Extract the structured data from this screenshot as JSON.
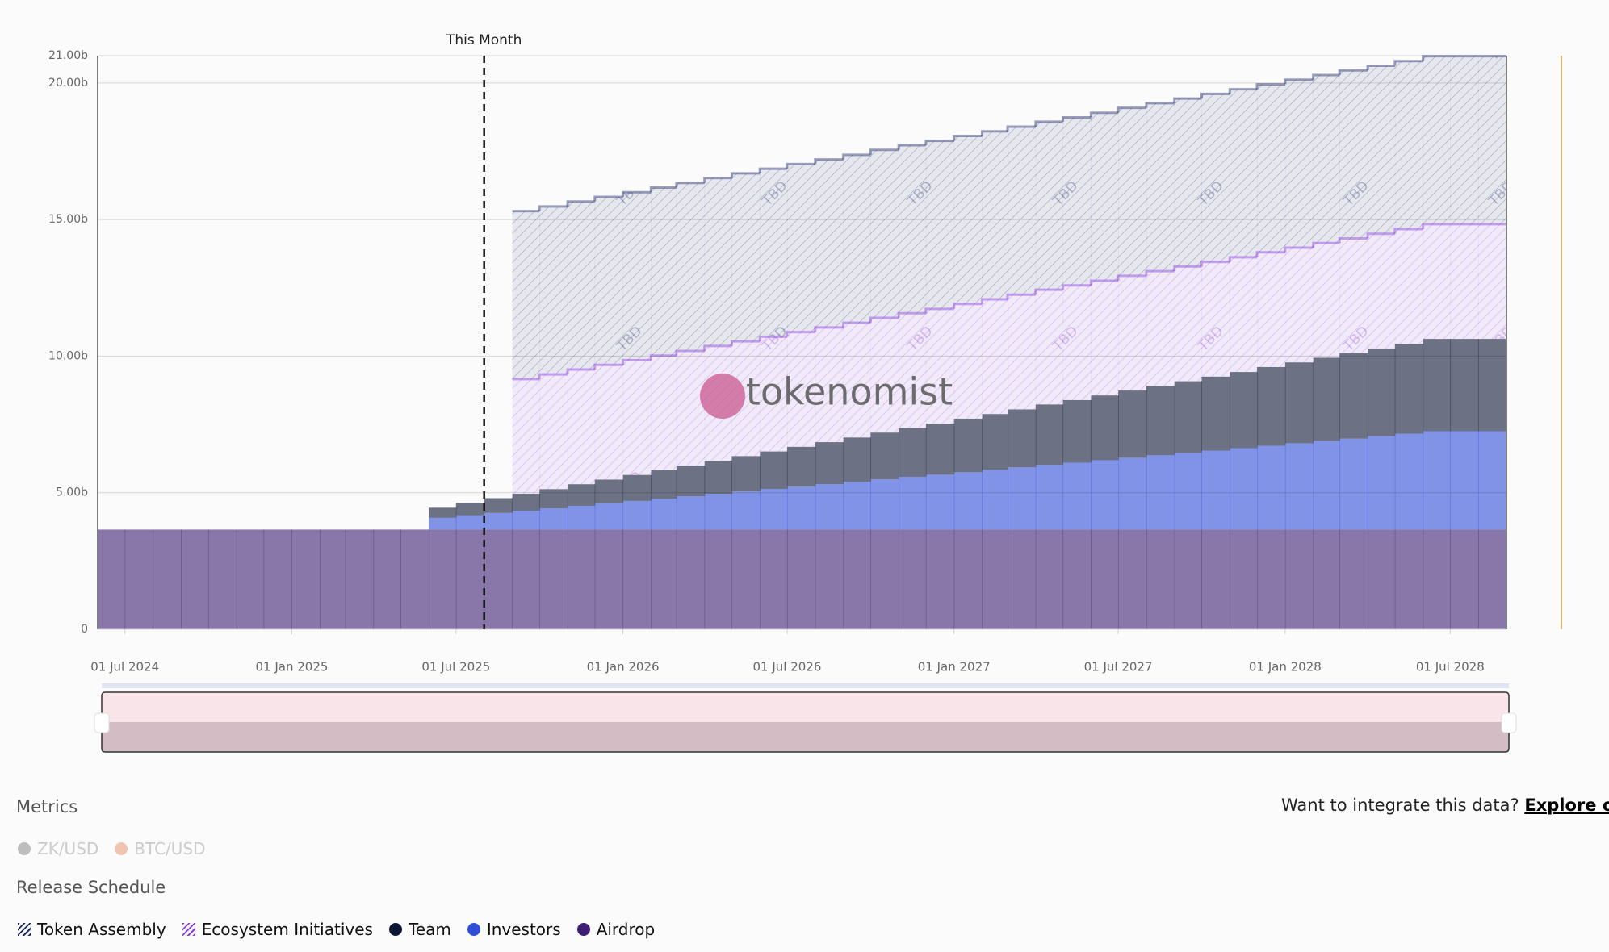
{
  "chart_data": {
    "type": "stacked-step-area",
    "annotation": {
      "x": "2025-08-01",
      "label": "This Month"
    },
    "watermark": "tokenomist",
    "hatch_label": "TBD",
    "x": [
      "2024-06-01",
      "2024-07-01",
      "2024-08-01",
      "2024-09-01",
      "2024-10-01",
      "2024-11-01",
      "2024-12-01",
      "2025-01-01",
      "2025-02-01",
      "2025-03-01",
      "2025-04-01",
      "2025-05-01",
      "2025-06-01",
      "2025-07-01",
      "2025-08-01",
      "2025-09-01",
      "2025-10-01",
      "2025-11-01",
      "2025-12-01",
      "2026-01-01",
      "2026-02-01",
      "2026-03-01",
      "2026-04-01",
      "2026-05-01",
      "2026-06-01",
      "2026-07-01",
      "2026-08-01",
      "2026-09-01",
      "2026-10-01",
      "2026-11-01",
      "2026-12-01",
      "2027-01-01",
      "2027-02-01",
      "2027-03-01",
      "2027-04-01",
      "2027-05-01",
      "2027-06-01",
      "2027-07-01",
      "2027-08-01",
      "2027-09-01",
      "2027-10-01",
      "2027-11-01",
      "2027-12-01",
      "2028-01-01",
      "2028-02-01",
      "2028-03-01",
      "2028-04-01",
      "2028-05-01",
      "2028-06-01",
      "2028-07-01",
      "2028-08-01"
    ],
    "xlim": [
      "2024-06-01",
      "2028-09-01"
    ],
    "xticks": [
      {
        "value": "2024-07-01",
        "label": "01 Jul 2024"
      },
      {
        "value": "2025-01-01",
        "label": "01 Jan 2025"
      },
      {
        "value": "2025-07-01",
        "label": "01 Jul 2025"
      },
      {
        "value": "2026-01-01",
        "label": "01 Jan 2026"
      },
      {
        "value": "2026-07-01",
        "label": "01 Jul 2026"
      },
      {
        "value": "2027-01-01",
        "label": "01 Jan 2027"
      },
      {
        "value": "2027-07-01",
        "label": "01 Jul 2027"
      },
      {
        "value": "2028-01-01",
        "label": "01 Jan 2028"
      },
      {
        "value": "2028-07-01",
        "label": "01 Jul 2028"
      }
    ],
    "ylim": [
      0,
      21
    ],
    "yticks": [
      0,
      {
        "value": 5,
        "label": "5.00b"
      },
      {
        "value": 10,
        "label": "10.00b"
      },
      {
        "value": 15,
        "label": "15.00b"
      },
      {
        "value": 20,
        "label": "20.00b"
      },
      {
        "value": 21,
        "label": "21.00b"
      }
    ],
    "grid": true,
    "series": [
      {
        "name": "Airdrop",
        "color": "#3e1f73",
        "hatched": false,
        "values": [
          3.65,
          3.65,
          3.65,
          3.65,
          3.65,
          3.65,
          3.65,
          3.65,
          3.65,
          3.65,
          3.65,
          3.65,
          3.65,
          3.65,
          3.65,
          3.65,
          3.65,
          3.65,
          3.65,
          3.65,
          3.65,
          3.65,
          3.65,
          3.65,
          3.65,
          3.65,
          3.65,
          3.65,
          3.65,
          3.65,
          3.65,
          3.65,
          3.65,
          3.65,
          3.65,
          3.65,
          3.65,
          3.65,
          3.65,
          3.65,
          3.65,
          3.65,
          3.65,
          3.65,
          3.65,
          3.65,
          3.65,
          3.65,
          3.65,
          3.65,
          3.65
        ]
      },
      {
        "name": "Investors",
        "color": "#2f4fd8",
        "hatched": false,
        "values": [
          null,
          null,
          null,
          null,
          null,
          null,
          null,
          null,
          null,
          null,
          null,
          null,
          0.43,
          0.52,
          0.61,
          0.69,
          0.78,
          0.87,
          0.96,
          1.05,
          1.13,
          1.22,
          1.31,
          1.4,
          1.49,
          1.57,
          1.66,
          1.75,
          1.84,
          1.93,
          2.01,
          2.1,
          2.19,
          2.28,
          2.37,
          2.45,
          2.54,
          2.63,
          2.72,
          2.81,
          2.89,
          2.98,
          3.07,
          3.16,
          3.25,
          3.33,
          3.42,
          3.51,
          3.6,
          3.6,
          3.6
        ]
      },
      {
        "name": "Team",
        "color": "#0d1633",
        "hatched": false,
        "values": [
          null,
          null,
          null,
          null,
          null,
          null,
          null,
          null,
          null,
          null,
          null,
          null,
          0.37,
          0.45,
          0.54,
          0.62,
          0.7,
          0.79,
          0.87,
          0.95,
          1.04,
          1.12,
          1.21,
          1.29,
          1.37,
          1.46,
          1.54,
          1.62,
          1.71,
          1.79,
          1.87,
          1.96,
          2.04,
          2.12,
          2.21,
          2.29,
          2.37,
          2.46,
          2.54,
          2.62,
          2.71,
          2.79,
          2.88,
          2.96,
          3.04,
          3.13,
          3.21,
          3.29,
          3.38,
          3.38,
          3.38
        ]
      },
      {
        "name": "Ecosystem Initiatives",
        "color": "#8b3ee0",
        "hatched": true,
        "values": [
          null,
          null,
          null,
          null,
          null,
          null,
          null,
          null,
          null,
          null,
          null,
          null,
          null,
          null,
          null,
          4.2,
          4.2,
          4.2,
          4.2,
          4.2,
          4.2,
          4.2,
          4.2,
          4.2,
          4.2,
          4.2,
          4.2,
          4.2,
          4.2,
          4.2,
          4.2,
          4.2,
          4.2,
          4.2,
          4.2,
          4.2,
          4.2,
          4.2,
          4.2,
          4.2,
          4.2,
          4.2,
          4.2,
          4.2,
          4.2,
          4.2,
          4.2,
          4.2,
          4.2,
          4.2,
          4.2
        ]
      },
      {
        "name": "Token Assembly",
        "color": "#1e2a6b",
        "hatched": true,
        "values": [
          null,
          null,
          null,
          null,
          null,
          null,
          null,
          null,
          null,
          null,
          null,
          null,
          null,
          null,
          null,
          6.15,
          6.15,
          6.15,
          6.15,
          6.15,
          6.15,
          6.15,
          6.15,
          6.15,
          6.15,
          6.15,
          6.15,
          6.15,
          6.15,
          6.15,
          6.15,
          6.15,
          6.15,
          6.15,
          6.15,
          6.15,
          6.15,
          6.15,
          6.15,
          6.15,
          6.15,
          6.15,
          6.15,
          6.15,
          6.15,
          6.15,
          6.15,
          6.15,
          6.15,
          6.15,
          6.15
        ]
      }
    ],
    "legend_title": "Release Schedule"
  },
  "metrics": {
    "title": "Metrics",
    "items": [
      {
        "name": "ZK/USD",
        "color": "#bdbdbd"
      },
      {
        "name": "BTC/USD",
        "color": "#f0c4b0"
      }
    ]
  },
  "api": {
    "text": "Want to integrate this data?",
    "link": "Explore our API"
  }
}
